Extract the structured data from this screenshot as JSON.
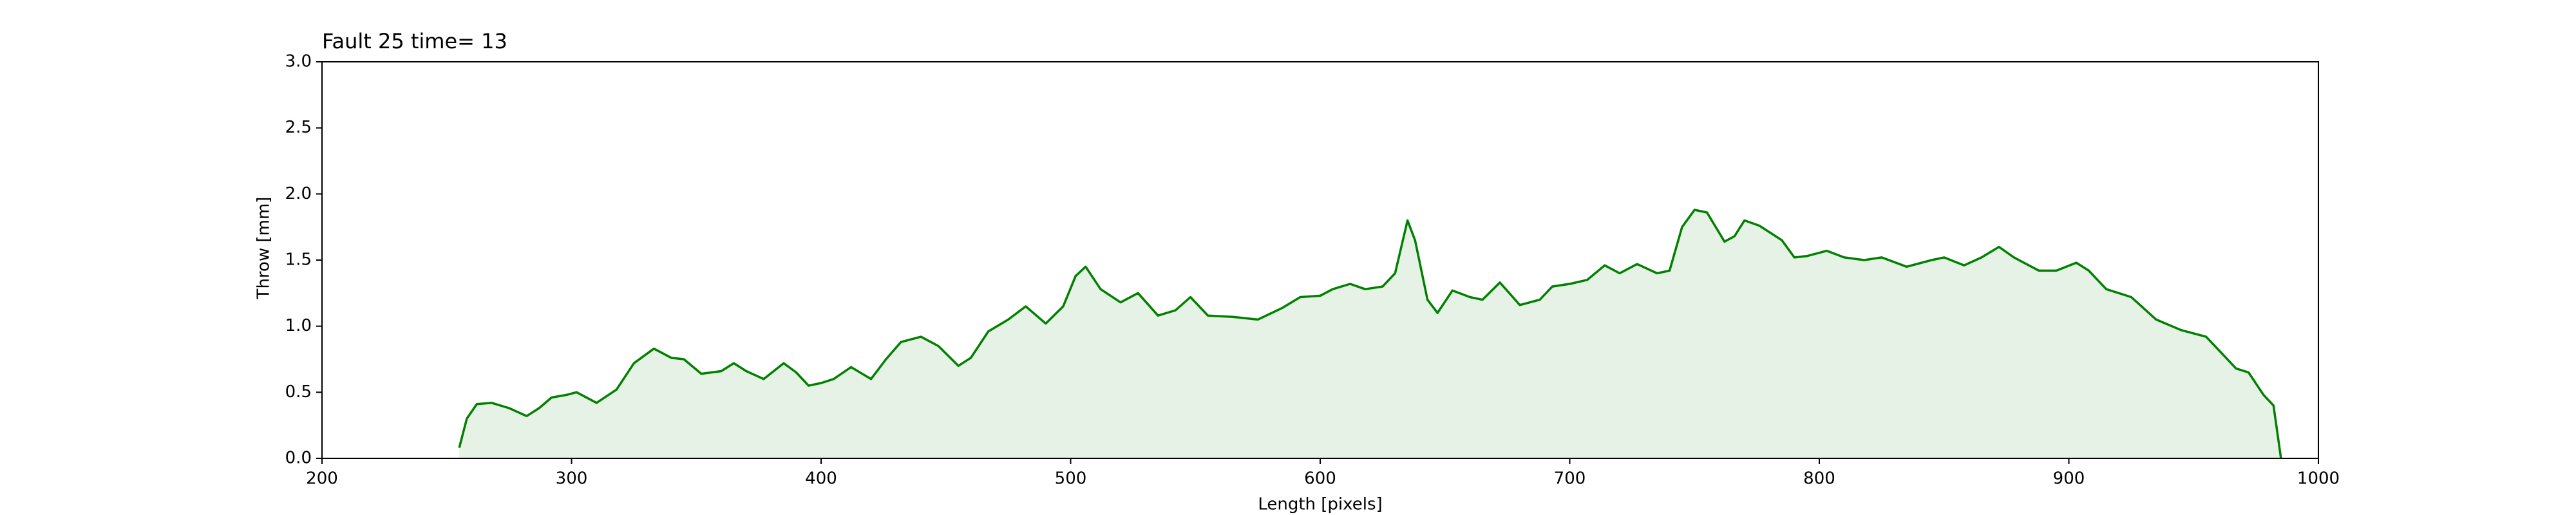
{
  "chart_data": {
    "type": "line",
    "title": "Fault 25 time= 13",
    "xlabel": "Length [pixels]",
    "ylabel": "Throw [mm]",
    "x": [
      255,
      258,
      262,
      268,
      275,
      282,
      287,
      292,
      298,
      302,
      310,
      318,
      325,
      333,
      340,
      345,
      352,
      360,
      365,
      370,
      377,
      385,
      390,
      395,
      400,
      405,
      412,
      420,
      426,
      432,
      440,
      447,
      455,
      460,
      467,
      475,
      482,
      490,
      497,
      502,
      506,
      512,
      520,
      527,
      535,
      542,
      548,
      555,
      565,
      575,
      585,
      592,
      600,
      605,
      612,
      618,
      625,
      630,
      635,
      638,
      643,
      647,
      653,
      660,
      665,
      672,
      680,
      688,
      693,
      700,
      707,
      714,
      720,
      727,
      735,
      740,
      745,
      750,
      755,
      762,
      766,
      770,
      776,
      785,
      790,
      795,
      803,
      810,
      818,
      825,
      835,
      845,
      850,
      858,
      865,
      872,
      878,
      888,
      895,
      903,
      908,
      915,
      925,
      935,
      945,
      955,
      962,
      967,
      972,
      978,
      982,
      985
    ],
    "values": [
      0.08,
      0.3,
      0.41,
      0.42,
      0.38,
      0.32,
      0.38,
      0.46,
      0.48,
      0.5,
      0.42,
      0.52,
      0.72,
      0.83,
      0.76,
      0.75,
      0.64,
      0.66,
      0.72,
      0.66,
      0.6,
      0.72,
      0.65,
      0.55,
      0.57,
      0.6,
      0.69,
      0.6,
      0.75,
      0.88,
      0.92,
      0.85,
      0.7,
      0.76,
      0.96,
      1.05,
      1.15,
      1.02,
      1.15,
      1.38,
      1.45,
      1.28,
      1.18,
      1.25,
      1.08,
      1.12,
      1.22,
      1.08,
      1.07,
      1.05,
      1.14,
      1.22,
      1.23,
      1.28,
      1.32,
      1.28,
      1.3,
      1.4,
      1.8,
      1.65,
      1.2,
      1.1,
      1.27,
      1.22,
      1.2,
      1.33,
      1.16,
      1.2,
      1.3,
      1.32,
      1.35,
      1.46,
      1.4,
      1.47,
      1.4,
      1.42,
      1.75,
      1.88,
      1.86,
      1.64,
      1.68,
      1.8,
      1.76,
      1.65,
      1.52,
      1.53,
      1.57,
      1.52,
      1.5,
      1.52,
      1.45,
      1.5,
      1.52,
      1.46,
      1.52,
      1.6,
      1.52,
      1.42,
      1.42,
      1.48,
      1.42,
      1.28,
      1.22,
      1.05,
      0.97,
      0.92,
      0.78,
      0.68,
      0.65,
      0.48,
      0.4,
      0.0
    ],
    "color": "#008000",
    "fill": true,
    "fill_opacity": 0.1,
    "xlim": [
      200,
      1000
    ],
    "xticks": [
      200,
      300,
      400,
      500,
      600,
      700,
      800,
      900,
      1000
    ],
    "ylim": [
      0.0,
      3.0
    ],
    "yticks": [
      {
        "value": 0,
        "label": "0.0"
      },
      {
        "value": 0.5,
        "label": "0.5"
      },
      {
        "value": 1,
        "label": "1.0"
      },
      {
        "value": 1.5,
        "label": "1.5"
      },
      {
        "value": 2,
        "label": "2.0"
      },
      {
        "value": 2.5,
        "label": "2.5"
      },
      {
        "value": 3,
        "label": "3.0"
      }
    ]
  }
}
